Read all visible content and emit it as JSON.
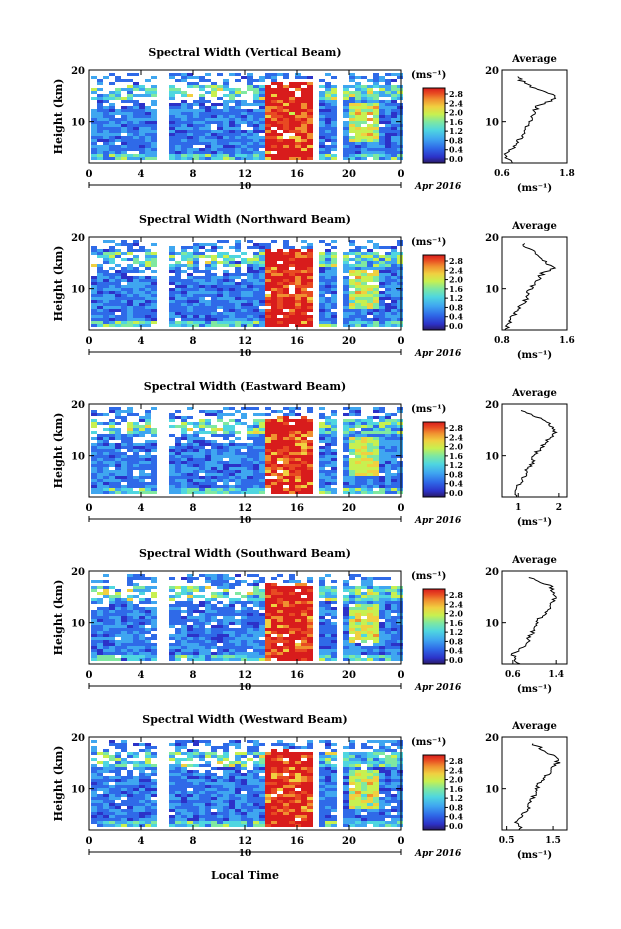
{
  "figure": {
    "xlabel": "Local Time",
    "ylabel": "Height (km)",
    "date_label": "Apr 2016",
    "day_label": "10",
    "colorbar_unit": "(ms⁻¹)",
    "average_title": "Average",
    "average_unit": "(ms⁻¹)"
  },
  "chart_data": [
    {
      "type": "heatmap",
      "title": "Spectral Width (Vertical Beam)",
      "xlim": [
        0,
        24
      ],
      "xticks": [
        "0",
        "4",
        "8",
        "12",
        "16",
        "20",
        "0"
      ],
      "ylim": [
        2,
        20
      ],
      "yticks": [
        "10",
        "20"
      ],
      "colorbar": [
        "2.8",
        "2.4",
        "2.0",
        "1.6",
        "1.2",
        "0.8",
        "0.4",
        "0.0"
      ],
      "profile": {
        "xlim": [
          0.6,
          1.8
        ],
        "xticks": [
          "0.6",
          "1.8"
        ],
        "heights": [
          2,
          3,
          4,
          5,
          6,
          7,
          8,
          9,
          10,
          11,
          12,
          13,
          14,
          15,
          16,
          17,
          18,
          19
        ],
        "values": [
          0.75,
          0.7,
          0.68,
          0.8,
          0.9,
          0.95,
          1.0,
          1.05,
          1.1,
          1.15,
          1.2,
          1.25,
          1.5,
          1.6,
          1.3,
          1.1,
          0.95,
          0.9
        ]
      }
    },
    {
      "type": "heatmap",
      "title": "Spectral Width (Northward Beam)",
      "xlim": [
        0,
        24
      ],
      "xticks": [
        "0",
        "4",
        "8",
        "12",
        "16",
        "20",
        "0"
      ],
      "ylim": [
        2,
        20
      ],
      "yticks": [
        "10",
        "20"
      ],
      "colorbar": [
        "2.8",
        "2.4",
        "2.0",
        "1.6",
        "1.2",
        "0.8",
        "0.4",
        "0.0"
      ],
      "profile": {
        "xlim": [
          0.8,
          1.6
        ],
        "xticks": [
          "0.8",
          "1.6"
        ],
        "heights": [
          2,
          3,
          4,
          5,
          6,
          7,
          8,
          9,
          10,
          11,
          12,
          13,
          14,
          15,
          16,
          17,
          18,
          19
        ],
        "values": [
          0.85,
          0.88,
          0.9,
          0.95,
          1.0,
          1.05,
          1.1,
          1.12,
          1.15,
          1.2,
          1.25,
          1.3,
          1.45,
          1.35,
          1.3,
          1.2,
          1.1,
          1.05
        ]
      }
    },
    {
      "type": "heatmap",
      "title": "Spectral Width (Eastward Beam)",
      "xlim": [
        0,
        24
      ],
      "xticks": [
        "0",
        "4",
        "8",
        "12",
        "16",
        "20",
        "0"
      ],
      "ylim": [
        2,
        20
      ],
      "yticks": [
        "10",
        "20"
      ],
      "colorbar": [
        "2.8",
        "2.4",
        "2.0",
        "1.6",
        "1.2",
        "0.8",
        "0.4",
        "0.0"
      ],
      "profile": {
        "xlim": [
          0.6,
          2.2
        ],
        "xticks": [
          "1",
          "2"
        ],
        "heights": [
          2,
          3,
          4,
          5,
          6,
          7,
          8,
          9,
          10,
          11,
          12,
          13,
          14,
          15,
          16,
          17,
          18,
          19
        ],
        "values": [
          0.9,
          0.95,
          1.0,
          1.1,
          1.15,
          1.2,
          1.3,
          1.35,
          1.4,
          1.5,
          1.6,
          1.7,
          1.85,
          1.9,
          1.8,
          1.6,
          1.3,
          1.0
        ]
      }
    },
    {
      "type": "heatmap",
      "title": "Spectral Width (Southward Beam)",
      "xlim": [
        0,
        24
      ],
      "xticks": [
        "0",
        "4",
        "8",
        "12",
        "16",
        "20",
        "0"
      ],
      "ylim": [
        2,
        20
      ],
      "yticks": [
        "10",
        "20"
      ],
      "colorbar": [
        "2.8",
        "2.4",
        "2.0",
        "1.6",
        "1.2",
        "0.8",
        "0.4",
        "0.0"
      ],
      "profile": {
        "xlim": [
          0.4,
          1.6
        ],
        "xticks": [
          "0.6",
          "1.4"
        ],
        "heights": [
          2,
          3,
          4,
          5,
          6,
          7,
          8,
          9,
          10,
          11,
          12,
          13,
          14,
          15,
          16,
          17,
          18,
          19
        ],
        "values": [
          0.7,
          0.65,
          0.6,
          0.75,
          0.85,
          0.9,
          0.95,
          1.0,
          1.05,
          1.1,
          1.2,
          1.3,
          1.35,
          1.4,
          1.35,
          1.3,
          1.1,
          0.8
        ]
      }
    },
    {
      "type": "heatmap",
      "title": "Spectral Width (Westward Beam)",
      "xlim": [
        0,
        24
      ],
      "xticks": [
        "0",
        "4",
        "8",
        "12",
        "16",
        "20",
        "0"
      ],
      "ylim": [
        2,
        20
      ],
      "yticks": [
        "10",
        "20"
      ],
      "colorbar": [
        "2.8",
        "2.4",
        "2.0",
        "1.6",
        "1.2",
        "0.8",
        "0.4",
        "0.0"
      ],
      "profile": {
        "xlim": [
          0.4,
          1.8
        ],
        "xticks": [
          "0.5",
          "1.5"
        ],
        "heights": [
          2,
          3,
          4,
          5,
          6,
          7,
          8,
          9,
          10,
          11,
          12,
          13,
          14,
          15,
          16,
          17,
          18,
          19
        ],
        "values": [
          0.8,
          0.75,
          0.7,
          0.85,
          0.95,
          1.0,
          1.05,
          1.1,
          1.15,
          1.2,
          1.3,
          1.4,
          1.5,
          1.6,
          1.55,
          1.4,
          1.2,
          1.0
        ]
      }
    }
  ],
  "colors": {
    "low": "#2a3fd6",
    "mid": "#3ad0e0",
    "high": "#e83a20",
    "colormap": [
      "#2a1a66",
      "#2c32c8",
      "#2f6ae8",
      "#3fa6f0",
      "#4fd6e0",
      "#7fe8a0",
      "#c8f050",
      "#f0d040",
      "#f09030",
      "#e84a22",
      "#d81c1c"
    ]
  }
}
